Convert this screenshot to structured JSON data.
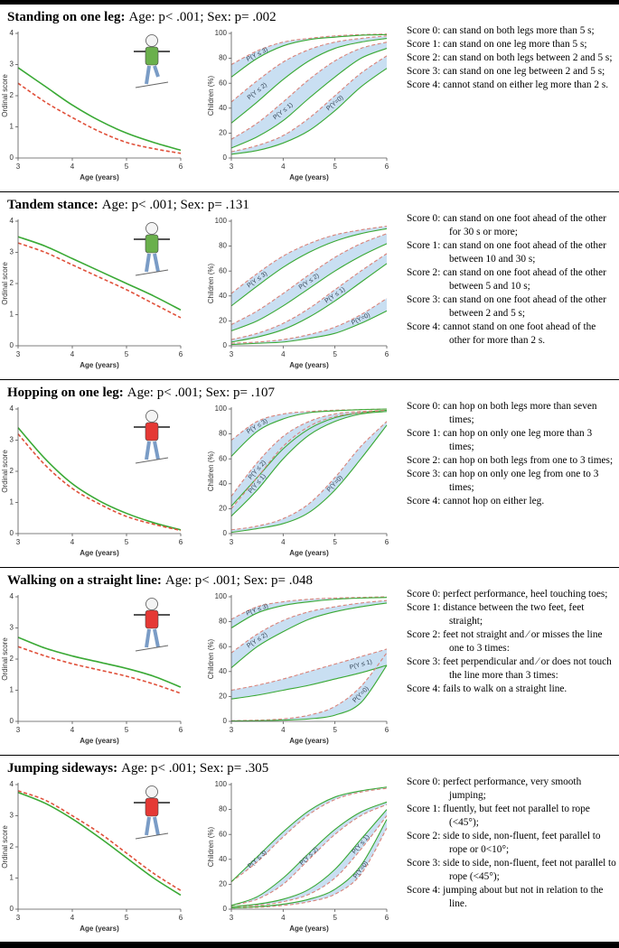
{
  "panels": [
    {
      "title": "Standing on one leg:",
      "stats": "Age: p< .001; Sex: p= .002",
      "scores": [
        "Score 0: can stand on both legs more than 5 s;",
        "Score 1: can stand on one leg more than 5 s;",
        "Score 2: can stand on both legs between 2 and 5 s;",
        "Score 3:   can stand on one leg between 2 and 5 s;",
        "Score 4: cannot stand on either leg more than 2 s."
      ]
    },
    {
      "title": "Tandem stance:",
      "stats": "Age: p< .001; Sex: p= .131",
      "scores": [
        "Score 0: can stand on one foot ahead of the other for 30 s or more;",
        "Score 1: can stand on one foot ahead of the other between 10 and 30 s;",
        "Score 2: can stand on one foot ahead of the other between 5 and 10 s;",
        "Score 3: can stand on one foot ahead of the other between 2 and 5 s;",
        "Score 4: cannot stand on one foot ahead of the other for more than 2 s."
      ]
    },
    {
      "title": "Hopping on one leg:",
      "stats": "Age: p< .001; Sex: p= .107",
      "scores": [
        "Score 0: can hop on both legs more than seven times;",
        "Score 1: can hop on only one leg more than 3 times;",
        "Score 2: can hop on both legs from one to 3 times;",
        "Score 3: can hop on only one leg from one to 3 times;",
        "Score 4: cannot hop on either leg."
      ]
    },
    {
      "title": "Walking on a straight line:",
      "stats": "Age: p< .001; Sex: p= .048",
      "scores": [
        "Score 0: perfect performance, heel touching toes;",
        "Score 1: distance between the two feet, feet straight;",
        "Score 2: feet not straight and ⁄ or misses the line one to 3 times:",
        "Score 3: feet perpendicular and ⁄ or does not touch the line more than 3 times:",
        "Score 4: fails to walk on a straight line."
      ]
    },
    {
      "title": "Jumping sideways:",
      "stats": "Age: p< .001; Sex: p= .305",
      "scores": [
        "Score 0: perfect performance, very smooth jumping;",
        "Score 1: fluently, but feet not parallel to rope (<45°);",
        "Score 2: side to side, non-fluent, feet parallel to rope or 0<10°;",
        "Score 3: side to side, non-fluent, feet not parallel to rope (<45°);",
        "Score 4: jumping about but not in relation to the line."
      ]
    }
  ],
  "chart_data": [
    {
      "type": "line",
      "xlabel": "Age (years)",
      "ylabel": "Ordinal score",
      "x": [
        3,
        3.5,
        4,
        4.5,
        5,
        5.5,
        6
      ],
      "xlim": [
        3,
        6
      ],
      "xticks": [
        3,
        4,
        5,
        6
      ],
      "ylim": [
        0,
        4
      ],
      "yticks": [
        0,
        1,
        2,
        3,
        4
      ],
      "series": [
        {
          "color": "#3aa935",
          "style": "solid",
          "values": [
            2.9,
            2.3,
            1.7,
            1.2,
            0.8,
            0.5,
            0.25
          ]
        },
        {
          "color": "#e0503a",
          "style": "dashed",
          "values": [
            2.4,
            1.8,
            1.3,
            0.85,
            0.5,
            0.3,
            0.15
          ]
        }
      ]
    },
    {
      "type": "band",
      "xlabel": "Age (years)",
      "ylabel": "Children (%)",
      "x": [
        3,
        3.5,
        4,
        4.5,
        5,
        5.5,
        6
      ],
      "xlim": [
        3,
        6
      ],
      "xticks": [
        3,
        4,
        5,
        6
      ],
      "ylim": [
        0,
        100
      ],
      "yticks": [
        0,
        20,
        40,
        60,
        80,
        100
      ],
      "band_color": "#c9dff2",
      "band_labels": [
        "P(Y ≤ 3)",
        "P(Y ≤ 2)",
        "P(Y ≤ 1)",
        "P(Y=0)"
      ],
      "series": [
        {
          "color": "#d9837a",
          "style": "dashed",
          "values": [
            75,
            86,
            93,
            96,
            98,
            99,
            99.5
          ]
        },
        {
          "color": "#3aa935",
          "style": "solid",
          "values": [
            65,
            80,
            90,
            95,
            97,
            98.5,
            99
          ]
        },
        {
          "color": "#d9837a",
          "style": "dashed",
          "values": [
            45,
            62,
            77,
            87,
            93,
            96,
            98
          ]
        },
        {
          "color": "#3aa935",
          "style": "solid",
          "values": [
            28,
            45,
            63,
            78,
            88,
            93,
            96
          ]
        },
        {
          "color": "#d9837a",
          "style": "dashed",
          "values": [
            15,
            28,
            45,
            63,
            78,
            88,
            93
          ]
        },
        {
          "color": "#3aa935",
          "style": "solid",
          "values": [
            8,
            17,
            30,
            48,
            65,
            80,
            88
          ]
        },
        {
          "color": "#d9837a",
          "style": "dashed",
          "values": [
            5,
            10,
            18,
            32,
            50,
            68,
            82
          ]
        },
        {
          "color": "#3aa935",
          "style": "solid",
          "values": [
            3,
            6,
            12,
            22,
            38,
            57,
            72
          ]
        }
      ]
    },
    {
      "type": "line",
      "xlabel": "Age (years)",
      "ylabel": "Ordinal score",
      "x": [
        3,
        3.5,
        4,
        4.5,
        5,
        5.5,
        6
      ],
      "xlim": [
        3,
        6
      ],
      "xticks": [
        3,
        4,
        5,
        6
      ],
      "ylim": [
        0,
        4
      ],
      "yticks": [
        0,
        1,
        2,
        3,
        4
      ],
      "series": [
        {
          "color": "#3aa935",
          "style": "solid",
          "values": [
            3.5,
            3.2,
            2.8,
            2.4,
            2.0,
            1.6,
            1.15
          ]
        },
        {
          "color": "#e0503a",
          "style": "dashed",
          "values": [
            3.3,
            3.0,
            2.6,
            2.2,
            1.8,
            1.35,
            0.9
          ]
        }
      ]
    },
    {
      "type": "band",
      "xlabel": "Age (years)",
      "ylabel": "Children (%)",
      "x": [
        3,
        3.5,
        4,
        4.5,
        5,
        5.5,
        6
      ],
      "xlim": [
        3,
        6
      ],
      "xticks": [
        3,
        4,
        5,
        6
      ],
      "ylim": [
        0,
        100
      ],
      "yticks": [
        0,
        20,
        40,
        60,
        80,
        100
      ],
      "band_color": "#c9dff2",
      "band_labels": [
        "P(Y ≤ 3)",
        "P(Y ≤ 2)",
        "P(Y ≤ 1)",
        "P(Y=0)"
      ],
      "series": [
        {
          "color": "#d9837a",
          "style": "dashed",
          "values": [
            42,
            58,
            72,
            82,
            89,
            93,
            96
          ]
        },
        {
          "color": "#3aa935",
          "style": "solid",
          "values": [
            32,
            48,
            63,
            75,
            84,
            90,
            94
          ]
        },
        {
          "color": "#d9837a",
          "style": "dashed",
          "values": [
            17,
            28,
            42,
            57,
            71,
            82,
            90
          ]
        },
        {
          "color": "#3aa935",
          "style": "solid",
          "values": [
            12,
            20,
            32,
            46,
            60,
            72,
            82
          ]
        },
        {
          "color": "#d9837a",
          "style": "dashed",
          "values": [
            5,
            10,
            18,
            30,
            45,
            60,
            74
          ]
        },
        {
          "color": "#3aa935",
          "style": "solid",
          "values": [
            3,
            7,
            13,
            23,
            36,
            51,
            66
          ]
        },
        {
          "color": "#d9837a",
          "style": "dashed",
          "values": [
            2,
            3,
            5,
            9,
            15,
            25,
            38
          ]
        },
        {
          "color": "#3aa935",
          "style": "solid",
          "values": [
            1,
            2,
            3,
            6,
            10,
            18,
            28
          ]
        }
      ]
    },
    {
      "type": "line",
      "xlabel": "Age (years)",
      "ylabel": "Ordinal score",
      "x": [
        3,
        3.5,
        4,
        4.5,
        5,
        5.5,
        6
      ],
      "xlim": [
        3,
        6
      ],
      "xticks": [
        3,
        4,
        5,
        6
      ],
      "ylim": [
        0,
        4
      ],
      "yticks": [
        0,
        1,
        2,
        3,
        4
      ],
      "series": [
        {
          "color": "#3aa935",
          "style": "solid",
          "values": [
            3.4,
            2.4,
            1.6,
            1.05,
            0.65,
            0.35,
            0.12
          ]
        },
        {
          "color": "#e0503a",
          "style": "dashed",
          "values": [
            3.2,
            2.2,
            1.45,
            0.95,
            0.55,
            0.3,
            0.1
          ]
        }
      ]
    },
    {
      "type": "band",
      "xlabel": "Age (years)",
      "ylabel": "Children (%)",
      "x": [
        3,
        3.5,
        4,
        4.5,
        5,
        5.5,
        6
      ],
      "xlim": [
        3,
        6
      ],
      "xticks": [
        3,
        4,
        5,
        6
      ],
      "ylim": [
        0,
        100
      ],
      "yticks": [
        0,
        20,
        40,
        60,
        80,
        100
      ],
      "band_color": "#c9dff2",
      "band_labels": [
        "P(Y ≤ 3)",
        "P(Y ≤ 2)",
        "P(Y ≤ 1)",
        "P(Y=0)"
      ],
      "series": [
        {
          "color": "#d9837a",
          "style": "dashed",
          "values": [
            75,
            90,
            96,
            98,
            99,
            99.5,
            100
          ]
        },
        {
          "color": "#3aa935",
          "style": "solid",
          "values": [
            62,
            82,
            92,
            97,
            98.5,
            99.5,
            100
          ]
        },
        {
          "color": "#d9837a",
          "style": "dashed",
          "values": [
            30,
            57,
            78,
            90,
            96,
            98,
            99
          ]
        },
        {
          "color": "#3aa935",
          "style": "solid",
          "values": [
            22,
            45,
            68,
            84,
            93,
            97,
            99
          ]
        },
        {
          "color": "#d9837a",
          "style": "dashed",
          "values": [
            20,
            45,
            70,
            86,
            94,
            97,
            99
          ]
        },
        {
          "color": "#3aa935",
          "style": "solid",
          "values": [
            14,
            35,
            60,
            79,
            90,
            96,
            98
          ]
        },
        {
          "color": "#d9837a",
          "style": "dashed",
          "values": [
            3,
            6,
            12,
            24,
            45,
            70,
            90
          ]
        },
        {
          "color": "#3aa935",
          "style": "solid",
          "values": [
            1,
            4,
            8,
            17,
            35,
            60,
            87
          ]
        }
      ]
    },
    {
      "type": "line",
      "xlabel": "Age (years)",
      "ylabel": "Ordinal score",
      "x": [
        3,
        3.5,
        4,
        4.5,
        5,
        5.5,
        6
      ],
      "xlim": [
        3,
        6
      ],
      "xticks": [
        3,
        4,
        5,
        6
      ],
      "ylim": [
        0,
        4
      ],
      "yticks": [
        0,
        1,
        2,
        3,
        4
      ],
      "series": [
        {
          "color": "#3aa935",
          "style": "solid",
          "values": [
            2.7,
            2.35,
            2.1,
            1.9,
            1.7,
            1.45,
            1.1
          ]
        },
        {
          "color": "#e0503a",
          "style": "dashed",
          "values": [
            2.4,
            2.1,
            1.85,
            1.65,
            1.45,
            1.2,
            0.9
          ]
        }
      ]
    },
    {
      "type": "band",
      "xlabel": "Age (years)",
      "ylabel": "Children (%)",
      "x": [
        3,
        3.5,
        4,
        4.5,
        5,
        5.5,
        6
      ],
      "xlim": [
        3,
        6
      ],
      "xticks": [
        3,
        4,
        5,
        6
      ],
      "ylim": [
        0,
        100
      ],
      "yticks": [
        0,
        20,
        40,
        60,
        80,
        100
      ],
      "band_color": "#c9dff2",
      "band_labels": [
        "P(Y ≤ 3)",
        "P(Y ≤ 2)",
        "P(Y ≤ 1)",
        "P(Y=0)"
      ],
      "series": [
        {
          "color": "#d9837a",
          "style": "dashed",
          "values": [
            82,
            92,
            96,
            98,
            99,
            99.5,
            100
          ]
        },
        {
          "color": "#3aa935",
          "style": "solid",
          "values": [
            75,
            87,
            93,
            96,
            98,
            99,
            99.5
          ]
        },
        {
          "color": "#d9837a",
          "style": "dashed",
          "values": [
            55,
            70,
            81,
            88,
            92,
            95,
            97
          ]
        },
        {
          "color": "#3aa935",
          "style": "solid",
          "values": [
            43,
            60,
            72,
            82,
            88,
            92,
            95
          ]
        },
        {
          "color": "#d9837a",
          "style": "dashed",
          "values": [
            25,
            29,
            34,
            40,
            46,
            52,
            58
          ]
        },
        {
          "color": "#3aa935",
          "style": "solid",
          "values": [
            18,
            21,
            25,
            29,
            34,
            39,
            45
          ]
        },
        {
          "color": "#d9837a",
          "style": "dashed",
          "values": [
            0.5,
            1,
            2,
            5,
            12,
            28,
            55
          ]
        },
        {
          "color": "#3aa935",
          "style": "solid",
          "values": [
            0.3,
            0.5,
            1,
            2,
            5,
            15,
            45
          ]
        }
      ]
    },
    {
      "type": "line",
      "xlabel": "Age (years)",
      "ylabel": "Ordinal score",
      "x": [
        3,
        3.5,
        4,
        4.5,
        5,
        5.5,
        6
      ],
      "xlim": [
        3,
        6
      ],
      "xticks": [
        3,
        4,
        5,
        6
      ],
      "ylim": [
        0,
        4
      ],
      "yticks": [
        0,
        1,
        2,
        3,
        4
      ],
      "series": [
        {
          "color": "#3aa935",
          "style": "solid",
          "values": [
            3.75,
            3.4,
            2.9,
            2.3,
            1.65,
            1.0,
            0.45
          ]
        },
        {
          "color": "#e0503a",
          "style": "dashed",
          "values": [
            3.8,
            3.5,
            3.0,
            2.45,
            1.8,
            1.15,
            0.6
          ]
        }
      ]
    },
    {
      "type": "band",
      "xlabel": "Age (years)",
      "ylabel": "Children (%)",
      "x": [
        3,
        3.5,
        4,
        4.5,
        5,
        5.5,
        6
      ],
      "xlim": [
        3,
        6
      ],
      "xticks": [
        3,
        4,
        5,
        6
      ],
      "ylim": [
        0,
        100
      ],
      "yticks": [
        0,
        20,
        40,
        60,
        80,
        100
      ],
      "band_color": "#c9dff2",
      "band_labels": [
        "P(Y ≤ 3)",
        "P(Y ≤ 2)",
        "P(Y ≤ 1)",
        "P(Y=0)"
      ],
      "series": [
        {
          "color": "#d9837a",
          "style": "dashed",
          "values": [
            22,
            38,
            58,
            76,
            88,
            94,
            97
          ]
        },
        {
          "color": "#3aa935",
          "style": "solid",
          "values": [
            22,
            42,
            62,
            79,
            90,
            95,
            98
          ]
        },
        {
          "color": "#d9837a",
          "style": "dashed",
          "values": [
            3,
            8,
            20,
            40,
            60,
            75,
            84
          ]
        },
        {
          "color": "#3aa935",
          "style": "solid",
          "values": [
            3,
            10,
            25,
            45,
            64,
            78,
            86
          ]
        },
        {
          "color": "#d9837a",
          "style": "dashed",
          "values": [
            2,
            3,
            6,
            12,
            25,
            48,
            75
          ]
        },
        {
          "color": "#3aa935",
          "style": "solid",
          "values": [
            2,
            4,
            8,
            16,
            32,
            56,
            80
          ]
        },
        {
          "color": "#d9837a",
          "style": "dashed",
          "values": [
            1,
            1.5,
            3,
            6,
            12,
            28,
            65
          ]
        },
        {
          "color": "#3aa935",
          "style": "solid",
          "values": [
            1,
            2,
            4,
            8,
            16,
            35,
            72
          ]
        }
      ]
    }
  ]
}
